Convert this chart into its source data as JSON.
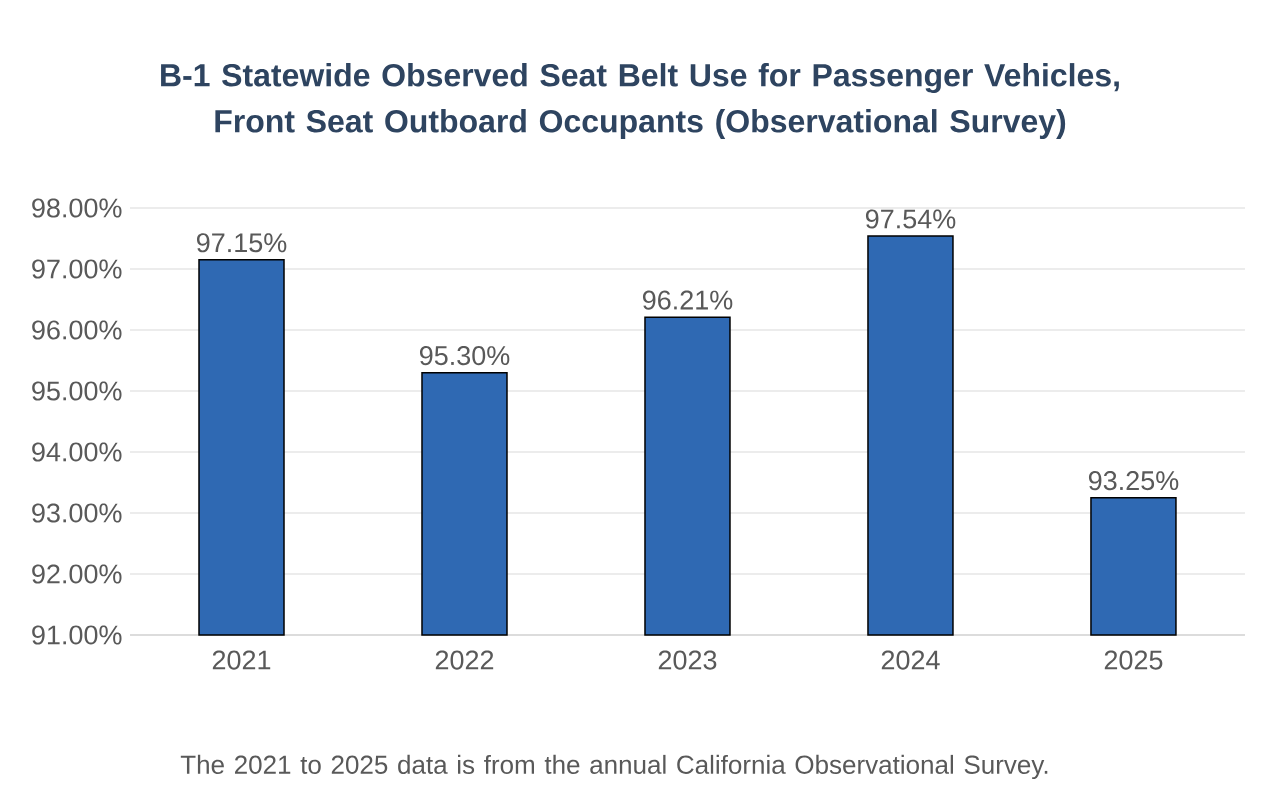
{
  "chart_data": {
    "type": "bar",
    "title": "B-1 Statewide Observed Seat Belt Use for Passenger Vehicles, Front Seat Outboard Occupants (Observational Survey)",
    "categories": [
      "2021",
      "2022",
      "2023",
      "2024",
      "2025"
    ],
    "values": [
      97.15,
      95.3,
      96.21,
      97.54,
      93.25
    ],
    "value_labels": [
      "97.15%",
      "95.30%",
      "96.21%",
      "97.54%",
      "93.25%"
    ],
    "color": "#2f69b3",
    "ylim": [
      91,
      98
    ],
    "yticks": [
      {
        "value": 91,
        "label": "91.00%"
      },
      {
        "value": 92,
        "label": "92.00%"
      },
      {
        "value": 93,
        "label": "93.00%"
      },
      {
        "value": 94,
        "label": "94.00%"
      },
      {
        "value": 95,
        "label": "95.00%"
      },
      {
        "value": 96,
        "label": "96.00%"
      },
      {
        "value": 97,
        "label": "97.00%"
      },
      {
        "value": 98,
        "label": "98.00%"
      }
    ],
    "grid": "y",
    "annotations": [
      "The 2021 to 2025 data is from the annual California Observational Survey."
    ]
  }
}
